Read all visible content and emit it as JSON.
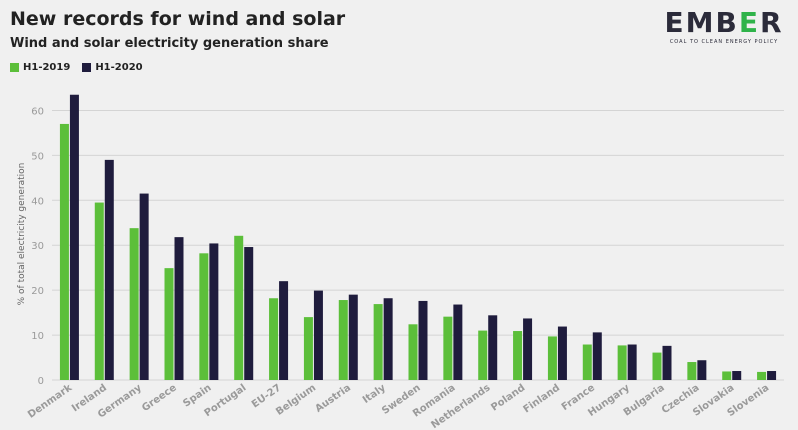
{
  "header": {
    "title": "New records for wind and solar",
    "subtitle": "Wind and solar electricity generation share"
  },
  "logo": {
    "word_part1": "EMB",
    "word_accent": "E",
    "word_part2": "R",
    "tagline": "COAL TO CLEAN ENERGY POLICY"
  },
  "colors": {
    "h1_2019": "#5cbf3a",
    "h1_2020": "#1f1c3d",
    "grid": "#d4d4d4",
    "tick": "#9a9a9a"
  },
  "chart_data": {
    "type": "bar",
    "title": "Wind and solar electricity generation share",
    "ylabel": "% of total electricity generation",
    "xlabel": "",
    "ylim": [
      0,
      65
    ],
    "yticks": [
      0,
      10,
      20,
      30,
      40,
      50,
      60
    ],
    "grid": true,
    "legend_position": "top-left",
    "categories": [
      "Denmark",
      "Ireland",
      "Germany",
      "Greece",
      "Spain",
      "Portugal",
      "EU-27",
      "Belgium",
      "Austria",
      "Italy",
      "Sweden",
      "Romania",
      "Netherlands",
      "Poland",
      "Finland",
      "France",
      "Hungary",
      "Bulgaria",
      "Czechia",
      "Slovakia",
      "Slovenia"
    ],
    "series": [
      {
        "name": "H1-2019",
        "color": "#5cbf3a",
        "values": [
          57.0,
          39.5,
          33.8,
          24.9,
          28.2,
          32.1,
          18.2,
          14.0,
          17.8,
          16.9,
          12.4,
          14.1,
          11.0,
          10.9,
          9.7,
          7.9,
          7.7,
          6.1,
          4.0,
          1.9,
          1.8
        ]
      },
      {
        "name": "H1-2020",
        "color": "#1f1c3d",
        "values": [
          63.5,
          49.0,
          41.5,
          31.8,
          30.4,
          29.6,
          22.0,
          19.9,
          19.0,
          18.2,
          17.6,
          16.8,
          14.4,
          13.7,
          11.9,
          10.6,
          7.9,
          7.6,
          4.4,
          2.0,
          2.0
        ]
      }
    ]
  }
}
